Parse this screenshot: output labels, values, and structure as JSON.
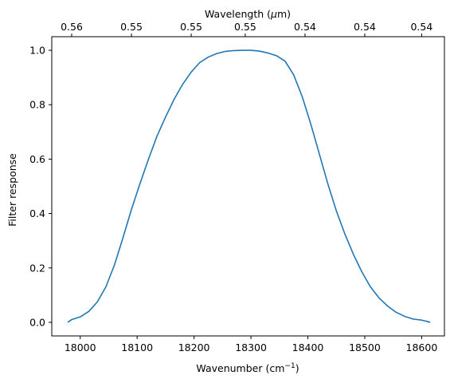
{
  "chart_data": {
    "type": "line",
    "xlabel": "Wavenumber (cm",
    "xlabel_sup": "−1",
    "xlabel_close": ")",
    "ylabel": "Filter response",
    "top_xlabel": "Wavelength (",
    "top_xlabel_mu": "μ",
    "top_xlabel_rest": "m)",
    "xlim": [
      17950,
      18640
    ],
    "ylim": [
      -0.05,
      1.05
    ],
    "xticks": [
      18000,
      18100,
      18200,
      18300,
      18400,
      18500,
      18600
    ],
    "yticks": [
      0.0,
      0.2,
      0.4,
      0.6,
      0.8,
      1.0
    ],
    "top_ticks": [
      {
        "x": 17985,
        "label": "0.56"
      },
      {
        "x": 18090,
        "label": "0.55"
      },
      {
        "x": 18195,
        "label": "0.55"
      },
      {
        "x": 18290,
        "label": "0.55"
      },
      {
        "x": 18395,
        "label": "0.54"
      },
      {
        "x": 18500,
        "label": "0.54"
      },
      {
        "x": 18600,
        "label": "0.54"
      }
    ],
    "grid": false,
    "line_color": "#1f77b4",
    "series": [
      {
        "x": [
          17978,
          17985,
          18000,
          18015,
          18030,
          18045,
          18060,
          18075,
          18090,
          18105,
          18120,
          18135,
          18150,
          18165,
          18180,
          18195,
          18210,
          18225,
          18240,
          18255,
          18270,
          18285,
          18300,
          18315,
          18330,
          18345,
          18360,
          18375,
          18390,
          18405,
          18420,
          18435,
          18450,
          18465,
          18480,
          18495,
          18510,
          18525,
          18540,
          18555,
          18570,
          18585,
          18600,
          18610,
          18615
        ],
        "y": [
          0.0,
          0.01,
          0.02,
          0.04,
          0.075,
          0.13,
          0.21,
          0.31,
          0.415,
          0.51,
          0.6,
          0.685,
          0.755,
          0.82,
          0.875,
          0.92,
          0.955,
          0.975,
          0.988,
          0.996,
          0.999,
          1.0,
          1.0,
          0.997,
          0.99,
          0.98,
          0.96,
          0.91,
          0.83,
          0.73,
          0.62,
          0.51,
          0.41,
          0.325,
          0.25,
          0.185,
          0.13,
          0.09,
          0.06,
          0.037,
          0.022,
          0.012,
          0.008,
          0.003,
          0.0
        ]
      }
    ]
  }
}
